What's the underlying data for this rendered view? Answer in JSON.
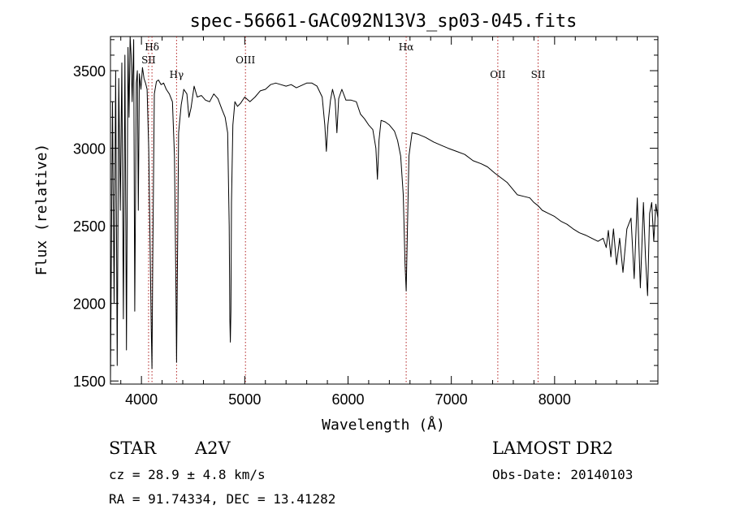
{
  "chart_data": {
    "type": "line",
    "title": "spec-56661-GAC092N13V3_sp03-045.fits",
    "xlabel": "Wavelength (Å)",
    "ylabel": "Flux (relative)",
    "xlim": [
      3700,
      9000
    ],
    "ylim": [
      1480,
      3720
    ],
    "x_ticks": [
      4000,
      5000,
      6000,
      7000,
      8000
    ],
    "x_tick_labels": [
      "4000",
      "5000",
      "6000",
      "7000",
      "8000"
    ],
    "y_ticks": [
      1500,
      2000,
      2500,
      3000,
      3500
    ],
    "y_tick_labels": [
      "1500",
      "2000",
      "2500",
      "3000",
      "3500"
    ],
    "grid": false,
    "line_markers": [
      {
        "label": "Hδ",
        "wavelength": 4102
      },
      {
        "label": "SII",
        "wavelength": 4069
      },
      {
        "label": "Hγ",
        "wavelength": 4340
      },
      {
        "label": "OIII",
        "wavelength": 5007
      },
      {
        "label": "Hα",
        "wavelength": 6563
      },
      {
        "label": "OII",
        "wavelength": 7450
      },
      {
        "label": "SII",
        "wavelength": 7840
      }
    ],
    "series": [
      {
        "x": [
          3700,
          3720,
          3735,
          3750,
          3765,
          3780,
          3795,
          3810,
          3825,
          3840,
          3855,
          3870,
          3880,
          3890,
          3900,
          3910,
          3925,
          3935,
          3950,
          3960,
          3970,
          3980,
          3995,
          4010,
          4025,
          4040,
          4055,
          4070,
          4085,
          4095,
          4102,
          4110,
          4125,
          4145,
          4165,
          4190,
          4215,
          4240,
          4270,
          4300,
          4320,
          4332,
          4340,
          4348,
          4360,
          4385,
          4410,
          4440,
          4460,
          4480,
          4510,
          4540,
          4580,
          4620,
          4660,
          4700,
          4740,
          4780,
          4810,
          4835,
          4850,
          4856,
          4861,
          4866,
          4872,
          4885,
          4905,
          4930,
          4960,
          5000,
          5050,
          5100,
          5150,
          5200,
          5250,
          5300,
          5350,
          5400,
          5450,
          5500,
          5550,
          5600,
          5650,
          5700,
          5750,
          5775,
          5790,
          5805,
          5830,
          5850,
          5875,
          5892,
          5910,
          5940,
          5980,
          6030,
          6080,
          6120,
          6160,
          6200,
          6240,
          6270,
          6285,
          6300,
          6320,
          6360,
          6400,
          6450,
          6480,
          6510,
          6535,
          6552,
          6563,
          6574,
          6590,
          6620,
          6680,
          6750,
          6830,
          6900,
          6970,
          7050,
          7130,
          7210,
          7290,
          7350,
          7420,
          7480,
          7540,
          7590,
          7640,
          7700,
          7760,
          7800,
          7840,
          7880,
          7940,
          8000,
          8060,
          8120,
          8180,
          8240,
          8300,
          8360,
          8420,
          8470,
          8500,
          8520,
          8545,
          8570,
          8600,
          8630,
          8662,
          8700,
          8740,
          8770,
          8800,
          8830,
          8860,
          8880,
          8900,
          8920,
          8940,
          8960,
          8980,
          9000
        ],
        "y": [
          1500,
          3300,
          2000,
          3500,
          1600,
          3450,
          2600,
          3550,
          1900,
          3600,
          1700,
          3650,
          3200,
          3720,
          3600,
          3300,
          3700,
          1950,
          3420,
          3500,
          2600,
          3480,
          3380,
          3520,
          3450,
          3420,
          3380,
          3000,
          2300,
          1850,
          1580,
          2300,
          3350,
          3430,
          3440,
          3410,
          3420,
          3380,
          3350,
          3300,
          2950,
          2200,
          1620,
          2200,
          3100,
          3280,
          3380,
          3350,
          3200,
          3260,
          3400,
          3330,
          3340,
          3310,
          3300,
          3350,
          3320,
          3250,
          3200,
          3100,
          2500,
          1900,
          1750,
          1950,
          2650,
          3150,
          3300,
          3270,
          3290,
          3330,
          3300,
          3330,
          3370,
          3380,
          3410,
          3420,
          3410,
          3400,
          3410,
          3390,
          3405,
          3420,
          3420,
          3400,
          3330,
          3150,
          2980,
          3150,
          3310,
          3380,
          3310,
          3100,
          3320,
          3380,
          3310,
          3310,
          3300,
          3220,
          3190,
          3150,
          3120,
          3000,
          2800,
          3050,
          3180,
          3170,
          3150,
          3110,
          3050,
          2950,
          2700,
          2250,
          2080,
          2450,
          2950,
          3100,
          3090,
          3070,
          3040,
          3020,
          3000,
          2980,
          2960,
          2920,
          2900,
          2880,
          2840,
          2810,
          2780,
          2740,
          2700,
          2690,
          2680,
          2650,
          2630,
          2600,
          2580,
          2560,
          2530,
          2510,
          2480,
          2455,
          2440,
          2420,
          2400,
          2420,
          2360,
          2470,
          2300,
          2480,
          2250,
          2420,
          2200,
          2480,
          2550,
          2160,
          2680,
          2100,
          2650,
          2300,
          2050,
          2580,
          2650,
          2400,
          2640,
          2550
        ]
      }
    ]
  },
  "info": {
    "object_class": "STAR",
    "subclass": "A2V",
    "survey": "LAMOST DR2",
    "cz": "cz = 28.9 ± 4.8 km/s",
    "obs_date": "Obs-Date: 20140103",
    "coords": "RA =  91.74334, DEC =  13.41282"
  }
}
